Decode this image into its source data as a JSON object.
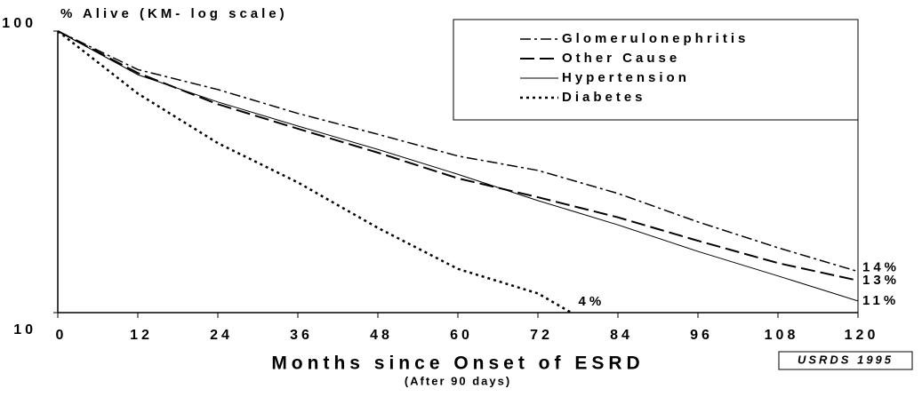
{
  "chart_data": {
    "type": "line",
    "y_axis_label": "% Alive (KM- log scale)",
    "x_axis_label": "Months since Onset of ESRD",
    "x_axis_sublabel": "(After 90 days)",
    "source": "USRDS 1995",
    "x": [
      0,
      12,
      24,
      36,
      48,
      60,
      72,
      84,
      96,
      108,
      120
    ],
    "xlim": [
      0,
      120
    ],
    "xticks": [
      0,
      12,
      24,
      36,
      48,
      60,
      72,
      84,
      96,
      108,
      120
    ],
    "ylim": [
      10,
      100
    ],
    "yticks": [
      10,
      100
    ],
    "log_y": true,
    "grid": false,
    "legend": "top-right",
    "series": [
      {
        "name": "Glomerulonephritis",
        "color": "#000000",
        "dash": "dashdot",
        "values": [
          100,
          73,
          62,
          51,
          43,
          36,
          32,
          26.5,
          21,
          17,
          14
        ],
        "end_label": "14%"
      },
      {
        "name": "Other Cause",
        "color": "#000000",
        "dash": "longdash",
        "values": [
          100,
          71,
          55,
          45,
          37,
          30,
          25.7,
          21.8,
          18,
          15,
          13
        ],
        "end_label": "13%"
      },
      {
        "name": "Hypertension",
        "color": "#000000",
        "dash": "solid",
        "values": [
          100,
          70,
          56,
          46,
          38,
          31,
          25,
          20.5,
          16.5,
          13.5,
          11
        ],
        "end_label": "11%"
      },
      {
        "name": "Diabetes",
        "color": "#000000",
        "dash": "dotted",
        "x": [
          0,
          12,
          24,
          36,
          48,
          60,
          72,
          77
        ],
        "values": [
          100,
          60,
          40,
          29,
          20,
          14.3,
          11.7,
          10
        ],
        "end_label": "4%"
      }
    ]
  }
}
